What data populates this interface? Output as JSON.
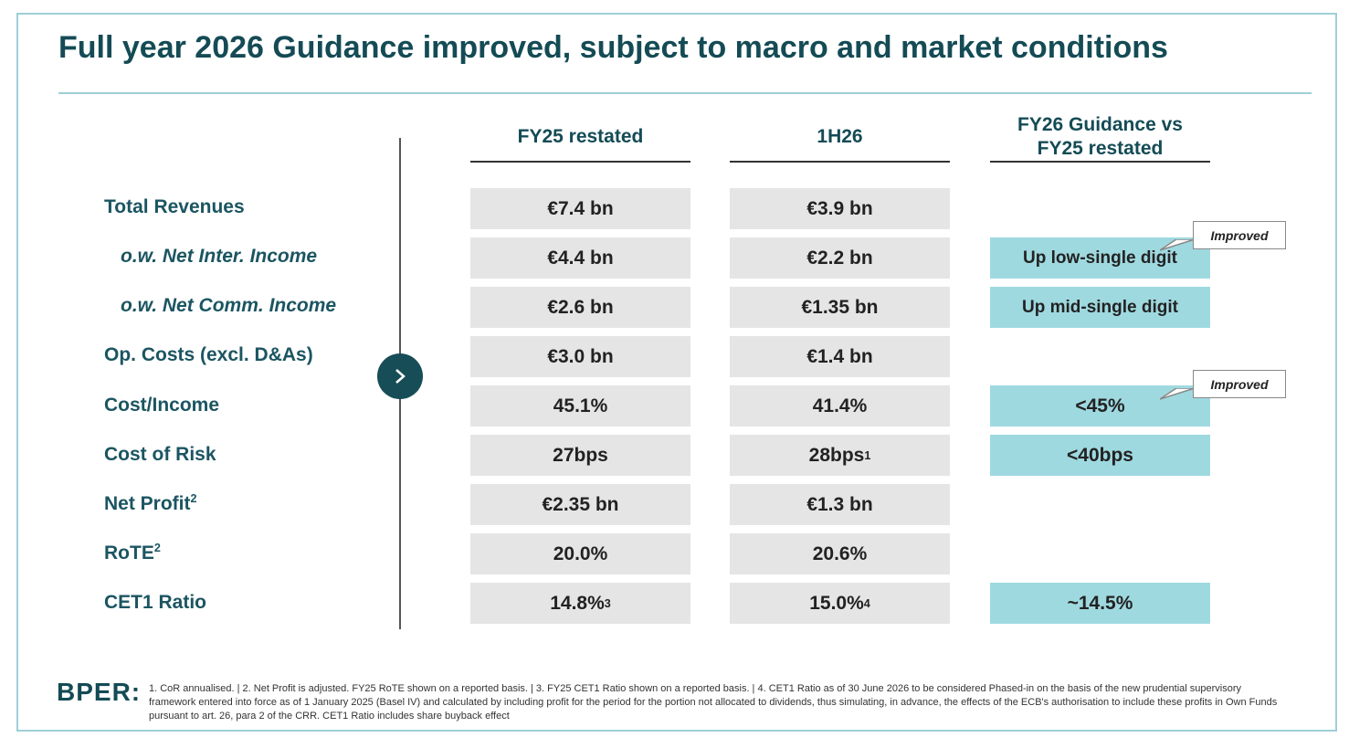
{
  "title": "Full year 2026 Guidance improved, subject to macro and market conditions",
  "columns": {
    "fy25": "FY25 restated",
    "h126": "1H26",
    "guidance_line1": "FY26 Guidance vs",
    "guidance_line2": "FY25 restated"
  },
  "rows": [
    {
      "label": "Total Revenues",
      "sup": "",
      "fy25": "€7.4 bn",
      "fy25_sup": "",
      "h126": "€3.9 bn",
      "h126_sup": "",
      "guidance": ""
    },
    {
      "label": "o.w. Net Inter. Income",
      "sup": "",
      "fy25": "€4.4 bn",
      "fy25_sup": "",
      "h126": "€2.2 bn",
      "h126_sup": "",
      "guidance": "Up low-single digit"
    },
    {
      "label": "o.w. Net Comm. Income",
      "sup": "",
      "fy25": "€2.6 bn",
      "fy25_sup": "",
      "h126": "€1.35 bn",
      "h126_sup": "",
      "guidance": "Up mid-single digit"
    },
    {
      "label": "Op. Costs (excl. D&As)",
      "sup": "",
      "fy25": "€3.0 bn",
      "fy25_sup": "",
      "h126": "€1.4 bn",
      "h126_sup": "",
      "guidance": ""
    },
    {
      "label": "Cost/Income",
      "sup": "",
      "fy25": "45.1%",
      "fy25_sup": "",
      "h126": "41.4%",
      "h126_sup": "",
      "guidance": "<45%"
    },
    {
      "label": "Cost of Risk",
      "sup": "",
      "fy25": "27bps",
      "fy25_sup": "",
      "h126": "28bps",
      "h126_sup": "1",
      "guidance": "<40bps"
    },
    {
      "label": "Net Profit",
      "sup": "2",
      "fy25": "€2.35 bn",
      "fy25_sup": "",
      "h126": "€1.3 bn",
      "h126_sup": "",
      "guidance": ""
    },
    {
      "label": "RoTE",
      "sup": "2",
      "fy25": "20.0%",
      "fy25_sup": "",
      "h126": "20.6%",
      "h126_sup": "",
      "guidance": ""
    },
    {
      "label": "CET1 Ratio",
      "sup": "",
      "fy25": "14.8%",
      "fy25_sup": "3",
      "h126": "15.0%",
      "h126_sup": "4",
      "guidance": "~14.5%"
    }
  ],
  "callouts": {
    "nii": "Improved",
    "cost_income": "Improved"
  },
  "logo": "BPER:",
  "footnote": "1. CoR annualised. | 2. Net Profit is adjusted. FY25 RoTE shown on a reported basis. | 3. FY25 CET1 Ratio shown on a reported basis. | 4. CET1 Ratio as of 30 June 2026 to be considered Phased-in on the basis of the new prudential supervisory framework entered into force as of 1 January 2025 (Basel IV) and calculated by including profit for the period for the portion not allocated to dividends, thus simulating, in advance, the effects of the ECB's authorisation to include these profits in Own Funds pursuant to art. 26, para 2 of the CRR. CET1 Ratio includes share buyback effect",
  "colors": {
    "accent": "#144b55",
    "guidance_fill": "#9fd9e0",
    "cell_fill": "#e5e5e5",
    "frame": "#9fcfd6"
  },
  "icons": {
    "arrow": "chevron-right-icon"
  }
}
